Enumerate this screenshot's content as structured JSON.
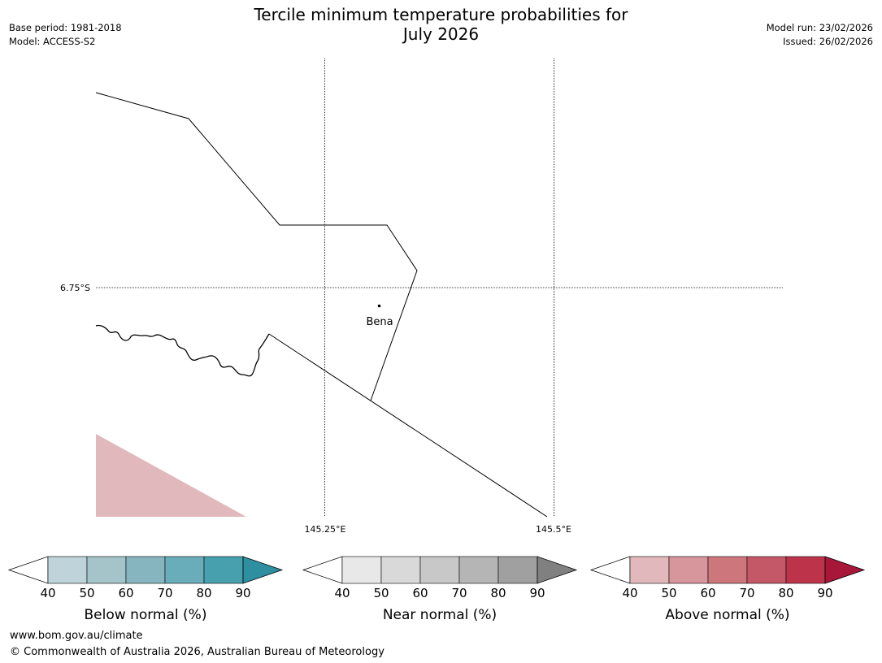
{
  "header": {
    "title_line1": "Tercile minimum temperature probabilities for",
    "title_line2": "July 2026",
    "base_period": "Base period: 1981-2018",
    "model": "Model: ACCESS-S2",
    "model_run": "Model run: 23/02/2026",
    "issued": "Issued: 26/02/2026"
  },
  "map": {
    "lat_label": "6.75°S",
    "lon_labels": [
      "145.25°E",
      "145.5°E"
    ],
    "place": {
      "name": "Bena"
    },
    "shading_color": "#e1b9bc"
  },
  "legends": [
    {
      "label": "Below normal (%)",
      "ticks": [
        "40",
        "50",
        "60",
        "70",
        "80",
        "90"
      ],
      "colors": [
        "#bed3da",
        "#a4c4c9",
        "#86b5c0",
        "#6aadba",
        "#46a0ae"
      ],
      "extend_color": "#2d8f9f"
    },
    {
      "label": "Near normal (%)",
      "ticks": [
        "40",
        "50",
        "60",
        "70",
        "80",
        "90"
      ],
      "colors": [
        "#e8e8e8",
        "#d9d9d9",
        "#c8c8c8",
        "#b5b5b5",
        "#a0a0a0"
      ],
      "extend_color": "#808080"
    },
    {
      "label": "Above normal (%)",
      "ticks": [
        "40",
        "50",
        "60",
        "70",
        "80",
        "90"
      ],
      "colors": [
        "#e1b9bc",
        "#d7959c",
        "#cd777d",
        "#c45866",
        "#bd334a"
      ],
      "extend_color": "#a8163a"
    }
  ],
  "footer": {
    "url": "www.bom.gov.au/climate",
    "copyright": "© Commonwealth of Australia 2026, Australian Bureau of Meteorology"
  }
}
